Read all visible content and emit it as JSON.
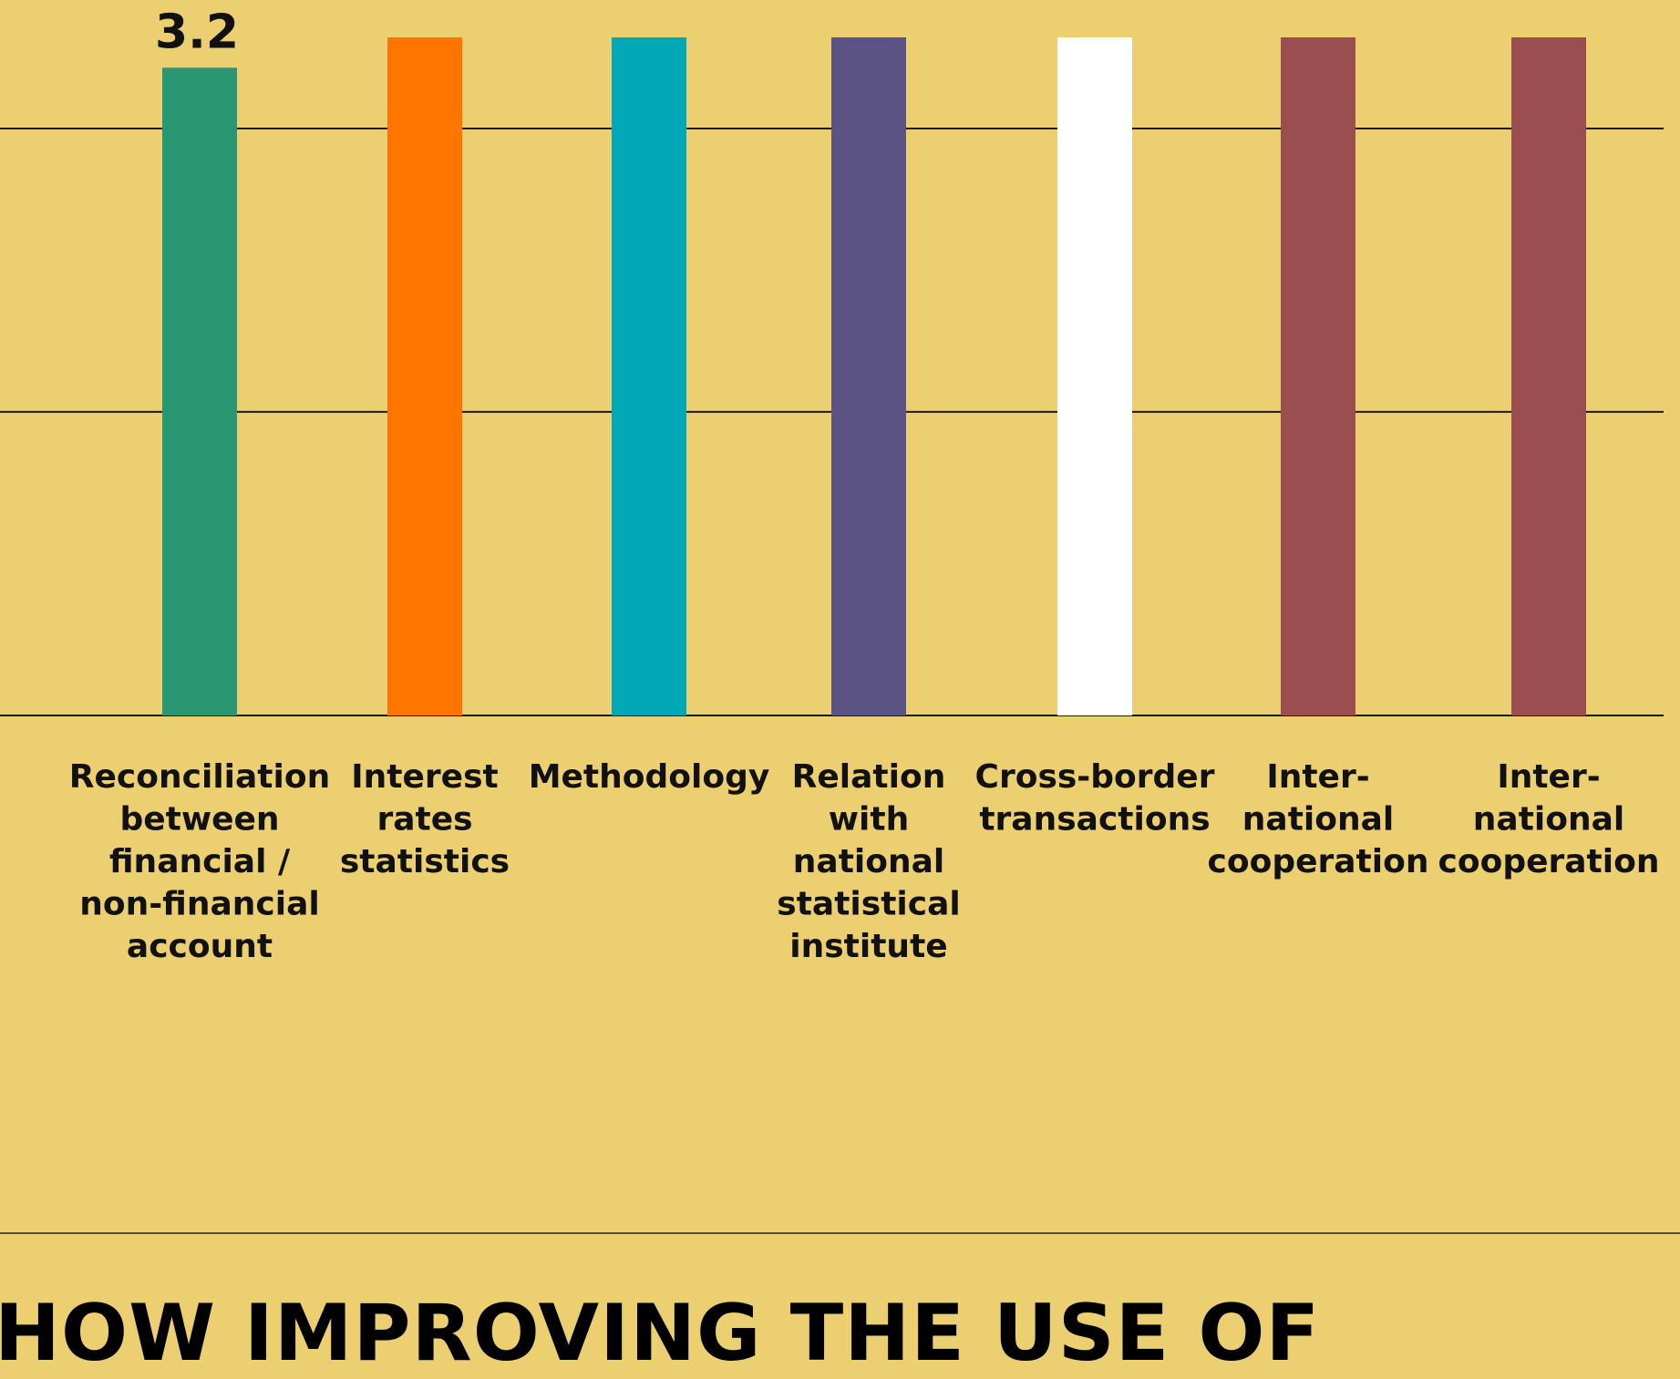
{
  "chart_data": {
    "type": "bar",
    "categories": [
      "Reconciliation between financial / non-financial account",
      "Interest rates statistics",
      "Methodology",
      "Relation with national statistical institute",
      "Cross-border transactions",
      "Inter-national cooperation",
      "Inter-national cooperation"
    ],
    "category_lines": [
      [
        "Reconciliation",
        "between",
        "financial /",
        "non-financial",
        "account"
      ],
      [
        "Interest",
        "rates",
        "statistics"
      ],
      [
        "Methodology"
      ],
      [
        "Relation",
        "with",
        "national",
        "statistical",
        "institute"
      ],
      [
        "Cross-border",
        "transactions"
      ],
      [
        "Inter-",
        "national",
        "cooperation"
      ],
      [
        "Inter-",
        "national",
        "cooperation"
      ]
    ],
    "values": [
      3.2,
      3.35,
      3.35,
      3.35,
      3.35,
      3.35,
      3.35
    ],
    "data_labels": [
      "3.2",
      "",
      "",
      "",
      "",
      "",
      ""
    ],
    "colors": [
      "#2a9672",
      "#fe7600",
      "#00a8b8",
      "#5c5385",
      "#ffffff",
      "#9b4e4f",
      "#9b4e4f"
    ],
    "ylim": [
      0,
      3.35
    ],
    "gridlines": [
      1.5,
      2.9
    ],
    "grid": true,
    "title": "",
    "xlabel": "",
    "ylabel": ""
  },
  "headline": "HOW IMPROVING THE USE OF"
}
